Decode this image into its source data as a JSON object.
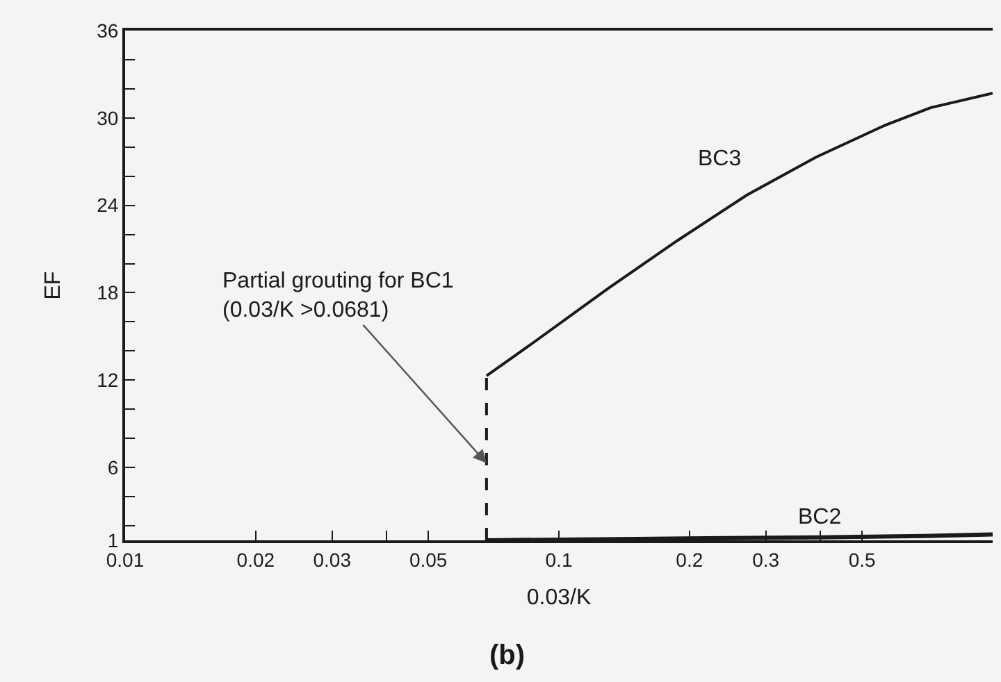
{
  "chart_data": {
    "type": "line",
    "xlabel": "0.03/K",
    "ylabel": "EF",
    "log": "x",
    "grid": false,
    "legend": false,
    "marker": "none",
    "xlim": [
      0.01,
      1
    ],
    "xticks": [
      0.01,
      0.02,
      0.03,
      {
        "value": 0.04,
        "label": null
      },
      0.05,
      0.1,
      0.2,
      0.3,
      {
        "value": 0.4,
        "label": null
      },
      0.5
    ],
    "ylim": [
      1,
      36
    ],
    "yticks": [
      1,
      {
        "value": 2,
        "label": null
      },
      {
        "value": 4,
        "label": null
      },
      6,
      {
        "value": 8,
        "label": null
      },
      {
        "value": 10,
        "label": null
      },
      12,
      {
        "value": 14,
        "label": null
      },
      {
        "value": 16,
        "label": null
      },
      18,
      {
        "value": 20,
        "label": null
      },
      {
        "value": 22,
        "label": null
      },
      24,
      {
        "value": 26,
        "label": null
      },
      {
        "value": 28,
        "label": null
      },
      30,
      {
        "value": 32,
        "label": null
      },
      {
        "value": 34,
        "label": null
      },
      36
    ],
    "series": [
      {
        "name": "BC3",
        "color": "#1a1a1a",
        "line_style": "solid",
        "x": [
          0.0681,
          0.0857,
          0.13,
          0.188,
          0.271,
          0.391,
          0.565,
          0.719,
          1
        ],
        "values": [
          12.3,
          14.4,
          18.3,
          21.6,
          24.7,
          27.3,
          29.5,
          30.7,
          31.7
        ]
      },
      {
        "name": "BC2",
        "color": "#1a1a1a",
        "line_style": "solid",
        "x": [
          0.0681,
          0.15,
          0.4,
          0.7,
          1
        ],
        "values": [
          1,
          1.1,
          1.2,
          1.3,
          1.4
        ]
      },
      {
        "color": "#1a1a1a",
        "line_style": "dashed",
        "x": [
          0.0681,
          0.0681
        ],
        "values": [
          1,
          12.3
        ]
      }
    ],
    "annotations": [
      {
        "text": "Partial grouting for BC1\n(0.03/K >0.0681)",
        "x": 0.0681,
        "y": 6.3
      },
      "(b)"
    ]
  }
}
